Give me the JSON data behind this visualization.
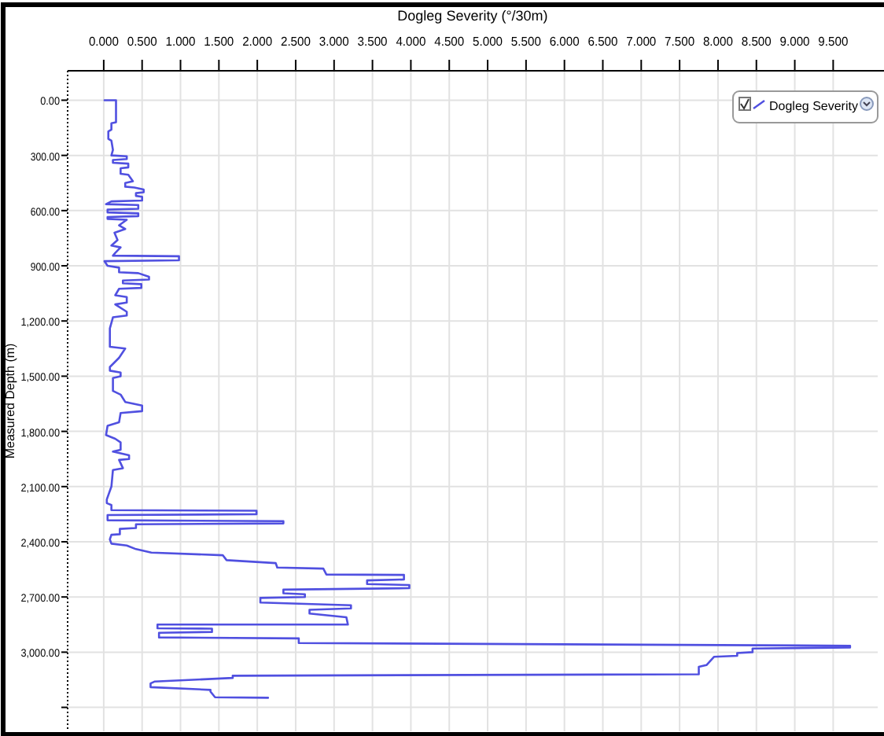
{
  "chart_data": {
    "type": "line",
    "xlabel": "Dogleg Severity (°/30m)",
    "ylabel": "Measured Depth (m)",
    "xlim": [
      -0.47,
      10.08
    ],
    "ylim": [
      3430,
      -160
    ],
    "xticks": [
      {
        "value": 0,
        "label": "0.000"
      },
      {
        "value": 0.5,
        "label": "0.500"
      },
      {
        "value": 1,
        "label": "1.000"
      },
      {
        "value": 1.5,
        "label": "1.500"
      },
      {
        "value": 2,
        "label": "2.000"
      },
      {
        "value": 2.5,
        "label": "2.500"
      },
      {
        "value": 3,
        "label": "3.000"
      },
      {
        "value": 3.5,
        "label": "3.500"
      },
      {
        "value": 4,
        "label": "4.000"
      },
      {
        "value": 4.5,
        "label": "4.500"
      },
      {
        "value": 5,
        "label": "5.000"
      },
      {
        "value": 5.5,
        "label": "5.500"
      },
      {
        "value": 6,
        "label": "6.000"
      },
      {
        "value": 6.5,
        "label": "6.500"
      },
      {
        "value": 7,
        "label": "7.000"
      },
      {
        "value": 7.5,
        "label": "7.500"
      },
      {
        "value": 8,
        "label": "8.000"
      },
      {
        "value": 8.5,
        "label": "8.500"
      },
      {
        "value": 9,
        "label": "9.000"
      },
      {
        "value": 9.5,
        "label": "9.500"
      }
    ],
    "yticks": [
      {
        "value": 0,
        "label": "0.00"
      },
      {
        "value": 300,
        "label": "300.00"
      },
      {
        "value": 600,
        "label": "600.00"
      },
      {
        "value": 900,
        "label": "900.00"
      },
      {
        "value": 1200,
        "label": "1,200.00"
      },
      {
        "value": 1500,
        "label": "1,500.00"
      },
      {
        "value": 1800,
        "label": "1,800.00"
      },
      {
        "value": 2100,
        "label": "2,100.00"
      },
      {
        "value": 2400,
        "label": "2,400.00"
      },
      {
        "value": 2700,
        "label": "2,700.00"
      },
      {
        "value": 3000,
        "label": "3,000.00"
      },
      {
        "value": 3300,
        "label": null
      }
    ],
    "grid": true,
    "legend": "top right",
    "series": [
      {
        "name": "Dogleg Severity",
        "color": "#5050e0",
        "x": [
          0.01,
          0.16,
          0.16,
          0.1,
          0.1,
          0.06,
          0.06,
          0.1,
          0.12,
          0.1,
          0.3,
          0.3,
          0.12,
          0.12,
          0.32,
          0.32,
          0.22,
          0.22,
          0.32,
          0.38,
          0.28,
          0.28,
          0.4,
          0.52,
          0.52,
          0.42,
          0.42,
          0.5,
          0.5,
          0.1,
          0.03,
          0.45,
          0.45,
          0.05,
          0.05,
          0.45,
          0.45,
          0.05,
          0.05,
          0.3,
          0.2,
          0.28,
          0.14,
          0.18,
          0.1,
          0.22,
          0.15,
          0.12,
          0.98,
          0.98,
          0.01,
          0.05,
          0.2,
          0.2,
          0.45,
          0.59,
          0.59,
          0.25,
          0.25,
          0.49,
          0.49,
          0.2,
          0.15,
          0.3,
          0.3,
          0.15,
          0.3,
          0.3,
          0.12,
          0.08,
          0.08,
          0.28,
          0.2,
          0.08,
          0.08,
          0.22,
          0.22,
          0.12,
          0.12,
          0.22,
          0.28,
          0.5,
          0.5,
          0.22,
          0.2,
          0.05,
          0.03,
          0.15,
          0.22,
          0.22,
          0.12,
          0.33,
          0.33,
          0.2,
          0.25,
          0.12,
          0.1,
          0.04,
          0.04,
          0.1,
          0.1,
          1.99,
          1.99,
          0.05,
          0.05,
          2.34,
          2.34,
          0.42,
          0.42,
          0.21,
          0.21,
          0.1,
          0.08,
          0.1,
          0.3,
          0.42,
          0.62,
          1.55,
          1.6,
          2.24,
          2.26,
          2.86,
          2.9,
          3.91,
          3.91,
          3.43,
          3.43,
          3.98,
          3.98,
          2.34,
          2.34,
          2.62,
          2.62,
          2.04,
          2.04,
          3.22,
          3.22,
          2.68,
          2.68,
          3.16,
          3.18,
          0.7,
          0.7,
          1.41,
          1.41,
          0.72,
          0.72,
          2.54,
          2.54,
          9.72,
          9.72,
          8.45,
          8.45,
          8.25,
          8.25,
          7.95,
          7.85,
          7.75,
          7.75,
          1.68,
          1.68,
          0.66,
          0.61,
          0.61,
          1.39,
          1.39,
          1.45,
          2.14
        ],
        "values": [
          0,
          0,
          120,
          125,
          160,
          170,
          210,
          220,
          270,
          300,
          305,
          320,
          325,
          340,
          345,
          365,
          370,
          400,
          405,
          440,
          450,
          470,
          475,
          485,
          500,
          505,
          520,
          525,
          545,
          550,
          565,
          570,
          590,
          595,
          610,
          615,
          630,
          635,
          645,
          650,
          680,
          700,
          720,
          760,
          790,
          800,
          830,
          845,
          848,
          870,
          875,
          900,
          910,
          935,
          940,
          960,
          975,
          980,
          995,
          1000,
          1020,
          1025,
          1060,
          1070,
          1100,
          1110,
          1150,
          1170,
          1180,
          1240,
          1340,
          1350,
          1400,
          1450,
          1470,
          1480,
          1500,
          1510,
          1580,
          1600,
          1640,
          1660,
          1690,
          1700,
          1750,
          1770,
          1820,
          1840,
          1860,
          1900,
          1910,
          1930,
          1950,
          1955,
          2000,
          2010,
          2100,
          2170,
          2190,
          2200,
          2228,
          2231,
          2250,
          2255,
          2283,
          2288,
          2300,
          2305,
          2325,
          2330,
          2359,
          2362,
          2387,
          2410,
          2420,
          2440,
          2459,
          2473,
          2500,
          2516,
          2540,
          2546,
          2578,
          2580,
          2605,
          2610,
          2630,
          2635,
          2652,
          2660,
          2680,
          2685,
          2700,
          2705,
          2730,
          2745,
          2762,
          2770,
          2790,
          2810,
          2850,
          2850,
          2870,
          2872,
          2890,
          2895,
          2920,
          2925,
          2950,
          2965,
          2975,
          2980,
          3000,
          3005,
          3020,
          3025,
          3070,
          3080,
          3120,
          3128,
          3140,
          3160,
          3170,
          3190,
          3205,
          3214,
          3245,
          3248
        ]
      }
    ]
  }
}
